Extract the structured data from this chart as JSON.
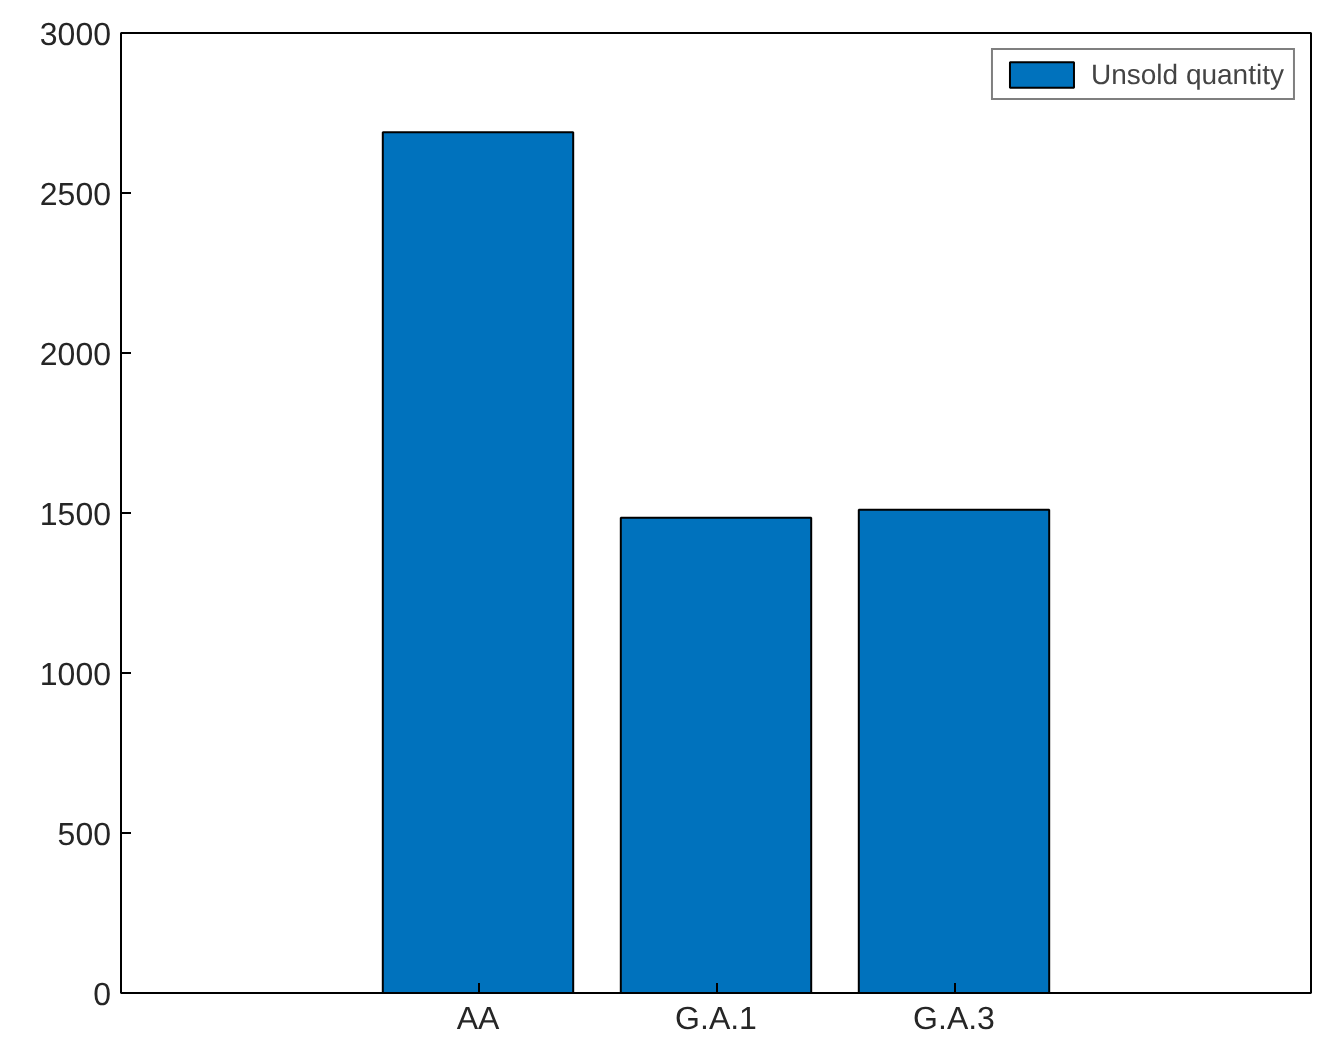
{
  "chart_data": {
    "type": "bar",
    "categories": [
      null,
      "AA",
      "G.A.1",
      "G.A.3",
      null
    ],
    "series": [
      {
        "name": "Unsold quantity",
        "color": "#0072bd",
        "values": [
          null,
          2690,
          1485,
          1510,
          null
        ]
      }
    ],
    "ylim": [
      0,
      3000
    ],
    "yticks": [
      0,
      500,
      1000,
      1500,
      2000,
      2500,
      3000
    ],
    "grid": false,
    "legend": "top right"
  }
}
